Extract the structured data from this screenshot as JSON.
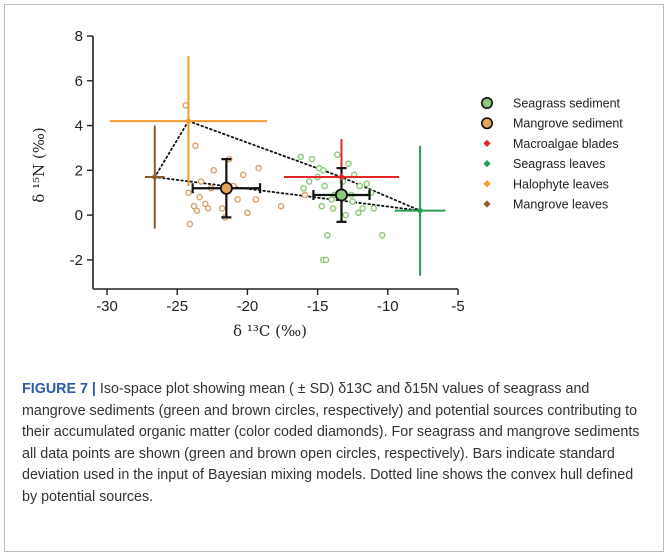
{
  "chart_data": {
    "type": "scatter",
    "xlabel": "δ ¹³C (‰)",
    "ylabel": "δ ¹⁵N (‰)",
    "xlim": [
      -31,
      -5
    ],
    "ylim": [
      -3.3,
      8
    ],
    "xticks": [
      -30,
      -25,
      -20,
      -15,
      -10,
      -5
    ],
    "yticks": [
      -2,
      0,
      2,
      4,
      6,
      8
    ],
    "grid": false,
    "legend_position": "right",
    "legend": [
      {
        "name": "Seagrass sediment",
        "marker": "circle",
        "color": "#8cc97a"
      },
      {
        "name": "Mangrove sediment",
        "marker": "circle",
        "color": "#e6a35c"
      },
      {
        "name": "Macroalgae blades",
        "marker": "diamond",
        "color": "#e02828"
      },
      {
        "name": "Seagrass leaves",
        "marker": "diamond",
        "color": "#2a9a55"
      },
      {
        "name": "Halophyte leaves",
        "marker": "diamond",
        "color": "#f29a2e"
      },
      {
        "name": "Mangrove leaves",
        "marker": "diamond",
        "color": "#8b5a2b"
      }
    ],
    "sources": [
      {
        "name": "Macroalgae blades",
        "x": -13.3,
        "y": 1.7,
        "sd_x": 4.1,
        "sd_y": 1.7,
        "color": "#e02828"
      },
      {
        "name": "Seagrass leaves",
        "x": -7.7,
        "y": 0.2,
        "sd_x": 1.8,
        "sd_y": 2.9,
        "color": "#2a9a55"
      },
      {
        "name": "Halophyte leaves",
        "x": -24.2,
        "y": 4.2,
        "sd_x": 5.6,
        "sd_y": 2.9,
        "color": "#f29a2e"
      },
      {
        "name": "Mangrove leaves",
        "x": -26.6,
        "y": 1.7,
        "sd_x": 0.7,
        "sd_y": 2.3,
        "color": "#8b5a2b"
      }
    ],
    "sediment_means": [
      {
        "name": "Seagrass sediment",
        "x": -13.3,
        "y": 0.9,
        "sd_x": 2.0,
        "sd_y": 1.2,
        "color": "#8cc97a"
      },
      {
        "name": "Mangrove sediment",
        "x": -21.5,
        "y": 1.2,
        "sd_x": 2.4,
        "sd_y": 1.3,
        "color": "#e6a35c"
      }
    ],
    "seagrass_sediment_points": [
      [
        -16.2,
        2.6
      ],
      [
        -15.4,
        2.5
      ],
      [
        -14.9,
        2.1
      ],
      [
        -14.6,
        2.0
      ],
      [
        -13.6,
        2.7
      ],
      [
        -12.8,
        2.3
      ],
      [
        -12.4,
        1.8
      ],
      [
        -15.0,
        1.7
      ],
      [
        -15.6,
        1.5
      ],
      [
        -16.0,
        1.2
      ],
      [
        -14.5,
        1.3
      ],
      [
        -13.2,
        1.5
      ],
      [
        -12.0,
        1.3
      ],
      [
        -11.5,
        1.4
      ],
      [
        -11.2,
        1.0
      ],
      [
        -12.6,
        0.9
      ],
      [
        -14.0,
        0.7
      ],
      [
        -14.7,
        0.4
      ],
      [
        -13.9,
        0.3
      ],
      [
        -12.5,
        0.6
      ],
      [
        -11.8,
        0.3
      ],
      [
        -11.0,
        0.3
      ],
      [
        -12.1,
        0.1
      ],
      [
        -13.0,
        0.0
      ],
      [
        -14.3,
        -0.9
      ],
      [
        -14.6,
        -2.0
      ],
      [
        -14.4,
        -2.0
      ],
      [
        -10.4,
        -0.9
      ],
      [
        -13.8,
        0.9
      ]
    ],
    "mangrove_sediment_points": [
      [
        -24.4,
        4.9
      ],
      [
        -23.7,
        3.1
      ],
      [
        -21.3,
        2.5
      ],
      [
        -19.2,
        2.1
      ],
      [
        -22.4,
        2.0
      ],
      [
        -20.3,
        1.8
      ],
      [
        -23.3,
        1.5
      ],
      [
        -22.6,
        1.2
      ],
      [
        -21.0,
        1.3
      ],
      [
        -24.2,
        1.0
      ],
      [
        -23.4,
        0.8
      ],
      [
        -20.7,
        0.7
      ],
      [
        -19.4,
        0.7
      ],
      [
        -23.0,
        0.5
      ],
      [
        -23.8,
        0.4
      ],
      [
        -21.8,
        0.3
      ],
      [
        -22.8,
        0.3
      ],
      [
        -23.6,
        0.2
      ],
      [
        -21.6,
        -0.1
      ],
      [
        -20.0,
        0.1
      ],
      [
        -24.1,
        -0.4
      ],
      [
        -17.6,
        0.4
      ],
      [
        -15.9,
        0.9
      ]
    ],
    "hull_order": [
      "Halophyte leaves",
      "Macroalgae blades",
      "Seagrass leaves",
      "Mangrove leaves"
    ]
  },
  "caption": {
    "label": "FIGURE 7 |",
    "text": "Iso-space plot showing mean ( ± SD) δ13C and δ15N values of seagrass and mangrove sediments (green and brown circles, respectively) and potential sources contributing to their accumulated organic matter (color coded diamonds). For seagrass and mangrove sediments all data points are shown (green and brown open circles, respectively). Bars indicate standard deviation used in the input of Bayesian mixing models. Dotted line shows the convex hull defined by potential sources."
  }
}
